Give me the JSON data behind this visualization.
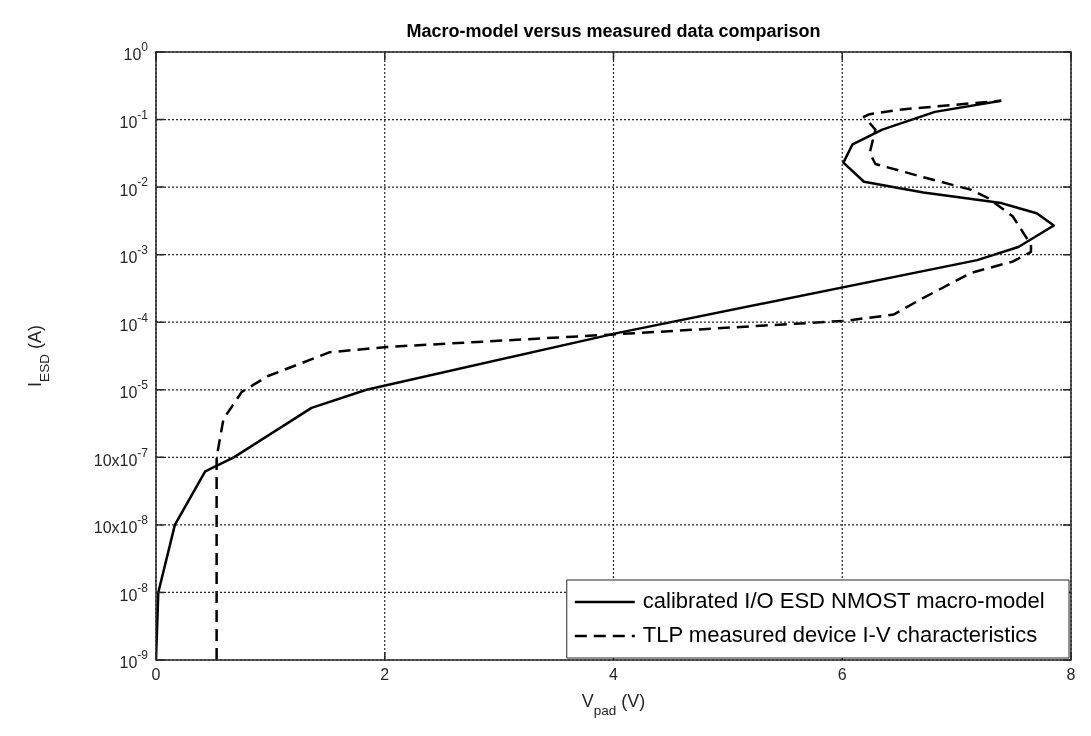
{
  "chart_data": {
    "type": "line",
    "title": "Macro-model versus measured data comparison",
    "xlabel": "V$_{pad}$ (V)",
    "ylabel": "I$_{ESD}$ (A)",
    "xlim": [
      0,
      8
    ],
    "xticks": [
      0,
      2,
      4,
      6,
      8
    ],
    "ylim": [
      1e-09,
      1
    ],
    "yticks": [
      {
        "value": 1,
        "label": "10$^{0}$"
      },
      {
        "value": 0.1,
        "label": "10$^{-1}$"
      },
      {
        "value": 0.01,
        "label": "10$^{-2}$"
      },
      {
        "value": 0.001,
        "label": "10$^{-3}$"
      },
      {
        "value": 0.0001,
        "label": "10$^{-4}$"
      },
      {
        "value": 1e-05,
        "label": "10$^{-5}$"
      },
      {
        "value": 1e-06,
        "label": "10x10$^{-7}$"
      },
      {
        "value": 1e-07,
        "label": "10x10$^{-8}$"
      },
      {
        "value": 1e-08,
        "label": "10$^{-8}$"
      },
      {
        "value": 1e-09,
        "label": "10$^{-9}$"
      }
    ],
    "log": "y",
    "grid": true,
    "legend": "bottom right",
    "marker": "none",
    "series": [
      {
        "name": "calibrated I/O ESD NMOST macro-model",
        "color": "#000000",
        "line_style": "solid",
        "x": [
          0,
          0.02,
          0.165,
          0.43,
          0.68,
          1.36,
          1.84,
          4.03,
          7.18,
          7.54,
          7.85,
          7.7,
          7.39,
          6.71,
          6.19,
          6.01,
          6.09,
          6.35,
          6.81,
          7.39
        ],
        "values": [
          1e-09,
          1e-08,
          1e-07,
          6.2e-07,
          1e-06,
          5.4e-06,
          1e-05,
          6.9e-05,
          0.00083,
          0.0013,
          0.0027,
          0.0041,
          0.0058,
          0.0083,
          0.012,
          0.023,
          0.043,
          0.071,
          0.13,
          0.19
        ]
      },
      {
        "name": "TLP measured device I-V characteristics",
        "color": "#000000",
        "line_style": "dashed",
        "x": [
          0.53,
          0.53,
          0.59,
          0.75,
          0.98,
          1.52,
          2.02,
          4.0,
          6.03,
          6.45,
          6.71,
          7.13,
          7.49,
          7.65,
          7.65,
          7.49,
          7.28,
          7.13,
          6.71,
          6.29,
          6.24,
          6.27,
          6.29,
          6.19,
          6.24,
          6.5,
          7.39
        ],
        "values": [
          1e-09,
          1e-06,
          3.7e-06,
          9.3e-06,
          1.6e-05,
          3.6e-05,
          4.3e-05,
          6.6e-05,
          0.000105,
          0.00013,
          0.00023,
          0.00054,
          0.00079,
          0.0011,
          0.0014,
          0.0037,
          0.0068,
          0.0091,
          0.014,
          0.022,
          0.032,
          0.052,
          0.071,
          0.11,
          0.12,
          0.14,
          0.19
        ]
      }
    ]
  }
}
